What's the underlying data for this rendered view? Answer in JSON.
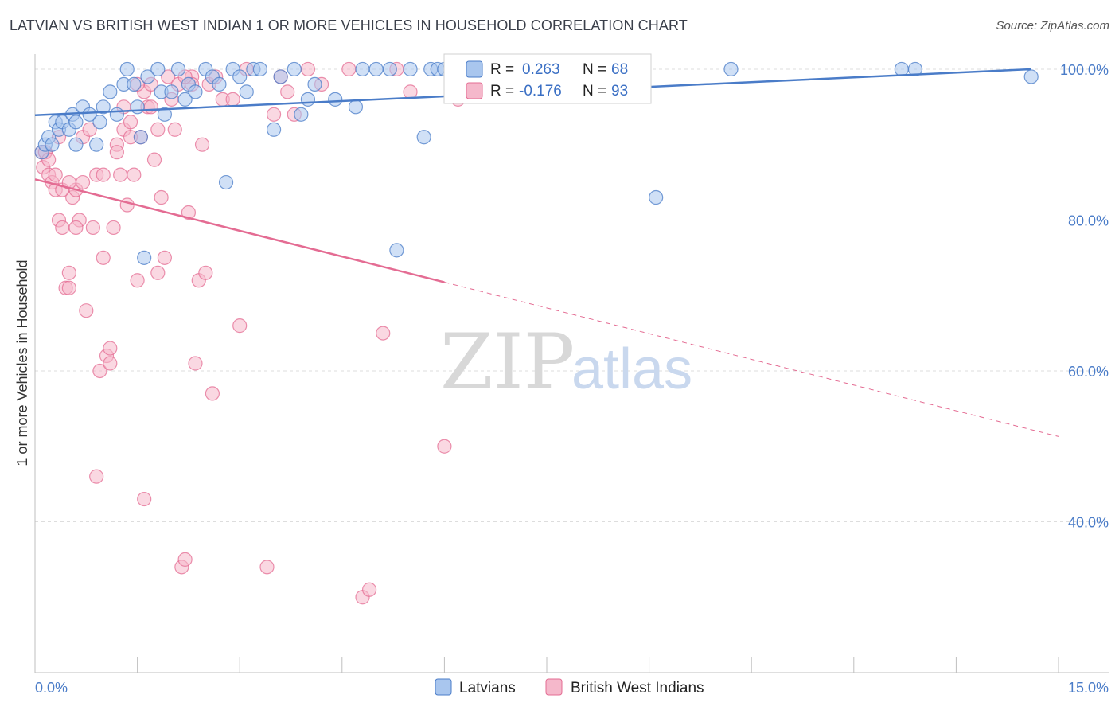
{
  "title": "LATVIAN VS BRITISH WEST INDIAN 1 OR MORE VEHICLES IN HOUSEHOLD CORRELATION CHART",
  "source": "Source: ZipAtlas.com",
  "watermark": {
    "zip": "ZIP",
    "atlas": "atlas"
  },
  "legend": {
    "r_label": "R =",
    "n_label": "N =",
    "rows": [
      {
        "r": "0.263",
        "n": "68",
        "color": "#8fb4e8"
      },
      {
        "r": "-0.176",
        "n": "93",
        "color": "#f2a8bf"
      }
    ]
  },
  "chart_data": {
    "type": "scatter",
    "title": "LATVIAN VS BRITISH WEST INDIAN 1 OR MORE VEHICLES IN HOUSEHOLD CORRELATION CHART",
    "xlabel": "",
    "ylabel": "1 or more Vehicles in Household",
    "xlim": [
      0,
      15
    ],
    "ylim": [
      20,
      102
    ],
    "x_tick_labels": [
      "0.0%",
      "15.0%"
    ],
    "y_ticks": [
      40,
      60,
      80,
      100
    ],
    "y_tick_labels": [
      "40.0%",
      "60.0%",
      "80.0%",
      "100.0%"
    ],
    "grid": true,
    "series": [
      {
        "name": "Latvians",
        "color": "#4a7cc8",
        "fill": "#a9c6ee",
        "R": 0.263,
        "N": 68,
        "trend": {
          "x0": 0,
          "y0": 93.9,
          "x1": 14.6,
          "y1": 100.0,
          "dashed_from": null
        },
        "points": [
          [
            0.1,
            89
          ],
          [
            0.15,
            90
          ],
          [
            0.2,
            91
          ],
          [
            0.25,
            90
          ],
          [
            0.3,
            93
          ],
          [
            0.35,
            92
          ],
          [
            0.4,
            93
          ],
          [
            0.5,
            92
          ],
          [
            0.55,
            94
          ],
          [
            0.6,
            93
          ],
          [
            0.7,
            95
          ],
          [
            0.8,
            94
          ],
          [
            0.9,
            90
          ],
          [
            0.95,
            93
          ],
          [
            1.0,
            95
          ],
          [
            1.1,
            97
          ],
          [
            1.2,
            94
          ],
          [
            1.3,
            98
          ],
          [
            1.35,
            100
          ],
          [
            1.45,
            98
          ],
          [
            1.5,
            95
          ],
          [
            1.55,
            91
          ],
          [
            1.6,
            75
          ],
          [
            1.65,
            99
          ],
          [
            1.8,
            100
          ],
          [
            1.85,
            97
          ],
          [
            1.9,
            94
          ],
          [
            2.0,
            97
          ],
          [
            2.1,
            100
          ],
          [
            2.2,
            96
          ],
          [
            2.25,
            98
          ],
          [
            2.35,
            97
          ],
          [
            2.5,
            100
          ],
          [
            2.6,
            99
          ],
          [
            2.7,
            98
          ],
          [
            2.8,
            85
          ],
          [
            2.9,
            100
          ],
          [
            3.0,
            99
          ],
          [
            3.1,
            97
          ],
          [
            3.2,
            100
          ],
          [
            3.3,
            100
          ],
          [
            3.5,
            92
          ],
          [
            3.6,
            99
          ],
          [
            3.8,
            100
          ],
          [
            3.9,
            94
          ],
          [
            4.0,
            96
          ],
          [
            4.1,
            98
          ],
          [
            4.4,
            96
          ],
          [
            4.7,
            95
          ],
          [
            4.8,
            100
          ],
          [
            5.0,
            100
          ],
          [
            5.2,
            100
          ],
          [
            5.3,
            76
          ],
          [
            5.5,
            100
          ],
          [
            5.7,
            91
          ],
          [
            5.8,
            100
          ],
          [
            5.9,
            100
          ],
          [
            6.0,
            100
          ],
          [
            6.5,
            99
          ],
          [
            6.7,
            98
          ],
          [
            7.3,
            100
          ],
          [
            7.6,
            100
          ],
          [
            9.1,
            83
          ],
          [
            10.2,
            100
          ],
          [
            12.7,
            100
          ],
          [
            12.9,
            100
          ],
          [
            14.6,
            99
          ],
          [
            0.6,
            90
          ]
        ]
      },
      {
        "name": "British West Indians",
        "color": "#e46c93",
        "fill": "#f5b8cb",
        "R": -0.176,
        "N": 93,
        "trend": {
          "x0": 0,
          "y0": 85.4,
          "x1": 15,
          "y1": 51.3,
          "dashed_from": 6.0
        },
        "points": [
          [
            0.1,
            89
          ],
          [
            0.12,
            87
          ],
          [
            0.15,
            89
          ],
          [
            0.2,
            86
          ],
          [
            0.25,
            85
          ],
          [
            0.3,
            84
          ],
          [
            0.35,
            80
          ],
          [
            0.4,
            79
          ],
          [
            0.45,
            71
          ],
          [
            0.5,
            73
          ],
          [
            0.55,
            83
          ],
          [
            0.6,
            84
          ],
          [
            0.65,
            80
          ],
          [
            0.7,
            91
          ],
          [
            0.75,
            68
          ],
          [
            0.8,
            92
          ],
          [
            0.85,
            79
          ],
          [
            0.9,
            86
          ],
          [
            0.95,
            60
          ],
          [
            1.0,
            75
          ],
          [
            1.05,
            62
          ],
          [
            1.1,
            61
          ],
          [
            1.15,
            79
          ],
          [
            1.2,
            90
          ],
          [
            1.25,
            86
          ],
          [
            1.3,
            92
          ],
          [
            1.35,
            82
          ],
          [
            1.4,
            93
          ],
          [
            1.45,
            86
          ],
          [
            1.5,
            72
          ],
          [
            1.55,
            91
          ],
          [
            1.6,
            97
          ],
          [
            1.65,
            95
          ],
          [
            1.7,
            98
          ],
          [
            1.75,
            88
          ],
          [
            1.8,
            73
          ],
          [
            1.85,
            83
          ],
          [
            1.9,
            75
          ],
          [
            1.95,
            99
          ],
          [
            2.0,
            96
          ],
          [
            2.05,
            92
          ],
          [
            2.1,
            98
          ],
          [
            2.15,
            34
          ],
          [
            2.2,
            35
          ],
          [
            2.25,
            81
          ],
          [
            2.3,
            99
          ],
          [
            2.35,
            61
          ],
          [
            2.4,
            72
          ],
          [
            2.45,
            90
          ],
          [
            2.5,
            73
          ],
          [
            2.55,
            98
          ],
          [
            2.6,
            57
          ],
          [
            2.65,
            99
          ],
          [
            2.75,
            96
          ],
          [
            2.9,
            96
          ],
          [
            3.0,
            66
          ],
          [
            3.1,
            100
          ],
          [
            3.4,
            34
          ],
          [
            3.5,
            94
          ],
          [
            3.6,
            99
          ],
          [
            3.7,
            97
          ],
          [
            3.8,
            94
          ],
          [
            4.0,
            100
          ],
          [
            4.2,
            98
          ],
          [
            4.6,
            100
          ],
          [
            4.8,
            30
          ],
          [
            4.9,
            31
          ],
          [
            5.1,
            65
          ],
          [
            5.3,
            100
          ],
          [
            5.5,
            97
          ],
          [
            6.0,
            50
          ],
          [
            6.2,
            96
          ],
          [
            0.15,
            89
          ],
          [
            0.2,
            88
          ],
          [
            0.3,
            86
          ],
          [
            0.4,
            84
          ],
          [
            0.5,
            85
          ],
          [
            0.6,
            79
          ],
          [
            1.0,
            86
          ],
          [
            1.2,
            89
          ],
          [
            1.3,
            95
          ],
          [
            1.4,
            91
          ],
          [
            1.5,
            98
          ],
          [
            1.6,
            43
          ],
          [
            0.9,
            46
          ],
          [
            1.7,
            95
          ],
          [
            2.3,
            98
          ],
          [
            1.1,
            63
          ],
          [
            0.7,
            85
          ],
          [
            0.5,
            71
          ],
          [
            1.8,
            92
          ],
          [
            2.2,
            99
          ],
          [
            0.35,
            91
          ]
        ]
      }
    ]
  },
  "bottom_legend": [
    {
      "label": "Latvians"
    },
    {
      "label": "British West Indians"
    }
  ]
}
